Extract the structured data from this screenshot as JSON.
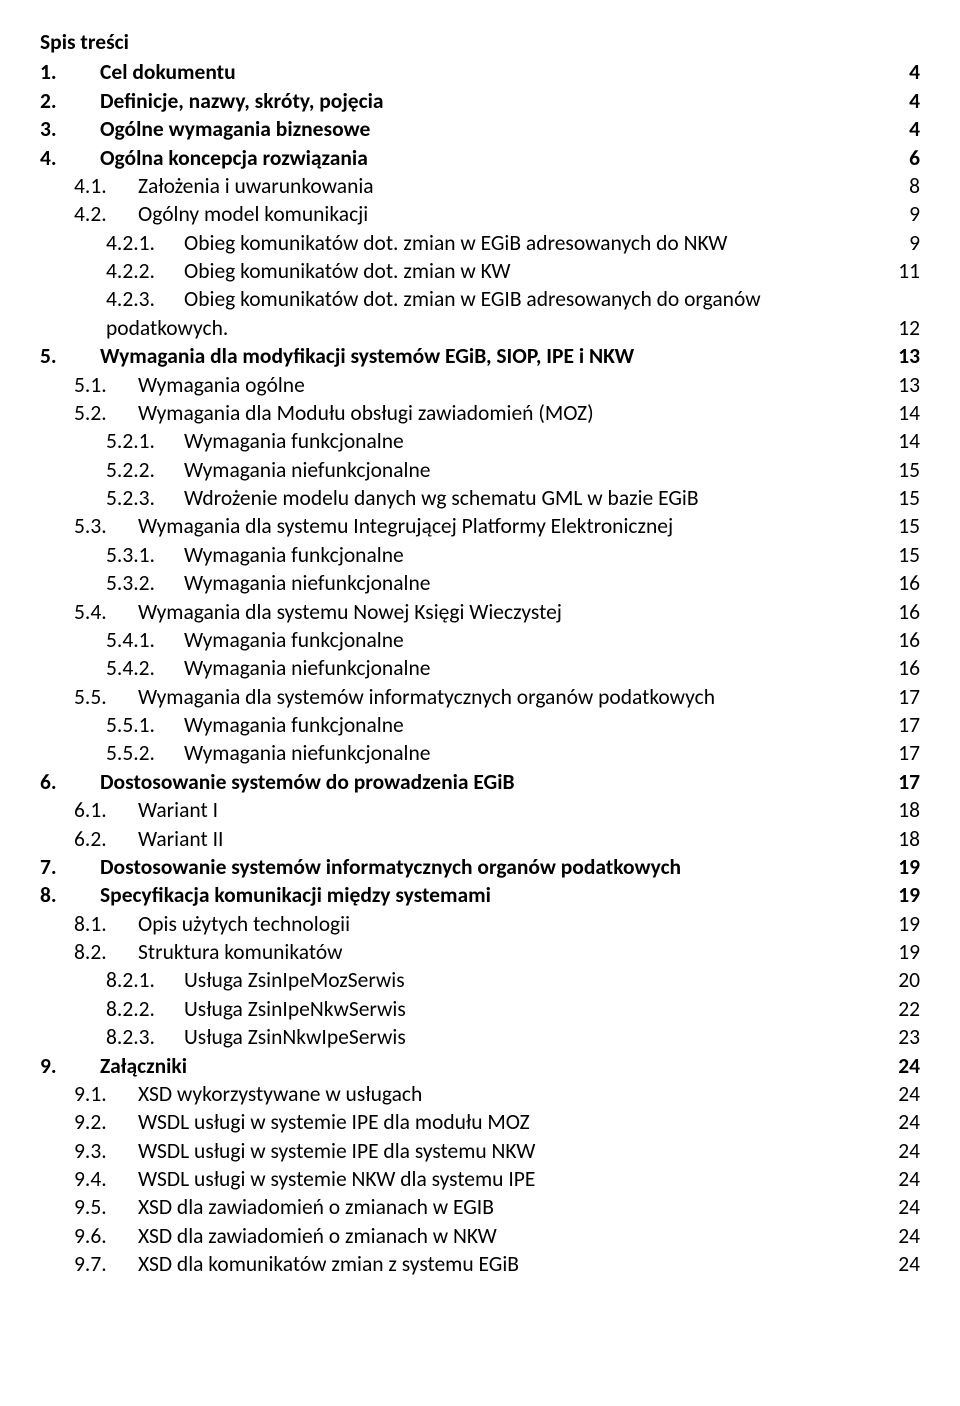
{
  "title": "Spis treści",
  "entries": [
    {
      "num": "1.",
      "numClass": "num-w1",
      "label": "Cel dokumentu",
      "page": "4",
      "bold": true,
      "indent": "lvl1"
    },
    {
      "num": "2.",
      "numClass": "num-w1",
      "label": "Definicje, nazwy, skróty, pojęcia",
      "page": "4",
      "bold": true,
      "indent": "lvl1"
    },
    {
      "num": "3.",
      "numClass": "num-w1",
      "label": "Ogólne wymagania biznesowe",
      "page": "4",
      "bold": true,
      "indent": "lvl1"
    },
    {
      "num": "4.",
      "numClass": "num-w1",
      "label": "Ogólna koncepcja rozwiązania",
      "page": "6",
      "bold": true,
      "indent": "lvl1"
    },
    {
      "num": "4.1.",
      "numClass": "num-w2",
      "label": "Założenia i uwarunkowania",
      "page": "8",
      "bold": false,
      "indent": "lvl2"
    },
    {
      "num": "4.2.",
      "numClass": "num-w2",
      "label": "Ogólny model komunikacji",
      "page": "9",
      "bold": false,
      "indent": "lvl2"
    },
    {
      "num": "4.2.1.",
      "numClass": "num-w3",
      "label": "Obieg komunikatów dot. zmian w EGiB adresowanych do NKW",
      "page": "9",
      "bold": false,
      "indent": "lvl3"
    },
    {
      "num": "4.2.2.",
      "numClass": "num-w3",
      "label": "Obieg komunikatów dot. zmian w KW",
      "page": "11",
      "bold": false,
      "indent": "lvl3"
    },
    {
      "type": "wrap",
      "num": "4.2.3.",
      "numClass": "num-w3",
      "line1": "Obieg   komunikatów   dot.   zmian   w   EGIB   adresowanych   do   organów",
      "line2": "podatkowych.",
      "page": "12",
      "indent": "lvl3"
    },
    {
      "num": "5.",
      "numClass": "num-w1",
      "label": "Wymagania dla modyfikacji systemów EGiB, SIOP, IPE i NKW",
      "page": "13",
      "bold": true,
      "indent": "lvl1"
    },
    {
      "num": "5.1.",
      "numClass": "num-w2",
      "label": "Wymagania ogólne",
      "page": "13",
      "bold": false,
      "indent": "lvl2"
    },
    {
      "num": "5.2.",
      "numClass": "num-w2",
      "label": "Wymagania dla Modułu obsługi zawiadomień (MOZ)",
      "page": "14",
      "bold": false,
      "indent": "lvl2"
    },
    {
      "num": "5.2.1.",
      "numClass": "num-w3",
      "label": "Wymagania funkcjonalne",
      "page": "14",
      "bold": false,
      "indent": "lvl3"
    },
    {
      "num": "5.2.2.",
      "numClass": "num-w3",
      "label": "Wymagania niefunkcjonalne",
      "page": "15",
      "bold": false,
      "indent": "lvl3"
    },
    {
      "num": "5.2.3.",
      "numClass": "num-w3",
      "label": "Wdrożenie modelu danych wg schematu GML w bazie EGiB",
      "page": "15",
      "bold": false,
      "indent": "lvl3"
    },
    {
      "num": "5.3.",
      "numClass": "num-w2",
      "label": "Wymagania dla systemu Integrującej Platformy Elektronicznej",
      "page": "15",
      "bold": false,
      "indent": "lvl2"
    },
    {
      "num": "5.3.1.",
      "numClass": "num-w3",
      "label": "Wymagania funkcjonalne",
      "page": "15",
      "bold": false,
      "indent": "lvl3"
    },
    {
      "num": "5.3.2.",
      "numClass": "num-w3",
      "label": "Wymagania niefunkcjonalne",
      "page": "16",
      "bold": false,
      "indent": "lvl3"
    },
    {
      "num": "5.4.",
      "numClass": "num-w2",
      "label": "Wymagania dla systemu Nowej Księgi Wieczystej",
      "page": "16",
      "bold": false,
      "indent": "lvl2"
    },
    {
      "num": "5.4.1.",
      "numClass": "num-w3",
      "label": "Wymagania funkcjonalne",
      "page": "16",
      "bold": false,
      "indent": "lvl3"
    },
    {
      "num": "5.4.2.",
      "numClass": "num-w3",
      "label": "Wymagania niefunkcjonalne",
      "page": "16",
      "bold": false,
      "indent": "lvl3"
    },
    {
      "num": "5.5.",
      "numClass": "num-w2",
      "label": "Wymagania dla systemów informatycznych organów podatkowych",
      "page": "17",
      "bold": false,
      "indent": "lvl2"
    },
    {
      "num": "5.5.1.",
      "numClass": "num-w3",
      "label": "Wymagania funkcjonalne",
      "page": "17",
      "bold": false,
      "indent": "lvl3"
    },
    {
      "num": "5.5.2.",
      "numClass": "num-w3",
      "label": "Wymagania niefunkcjonalne",
      "page": "17",
      "bold": false,
      "indent": "lvl3"
    },
    {
      "num": "6.",
      "numClass": "num-w1",
      "label": "Dostosowanie systemów do prowadzenia EGiB",
      "page": "17",
      "bold": true,
      "indent": "lvl1"
    },
    {
      "num": "6.1.",
      "numClass": "num-w2",
      "label": "Wariant I",
      "page": "18",
      "bold": false,
      "indent": "lvl2"
    },
    {
      "num": "6.2.",
      "numClass": "num-w2",
      "label": "Wariant II",
      "page": "18",
      "bold": false,
      "indent": "lvl2"
    },
    {
      "num": "7.",
      "numClass": "num-w1",
      "label": "Dostosowanie systemów informatycznych organów podatkowych",
      "page": "19",
      "bold": true,
      "indent": "lvl1"
    },
    {
      "num": "8.",
      "numClass": "num-w1",
      "label": "Specyfikacja komunikacji między systemami",
      "page": "19",
      "bold": true,
      "indent": "lvl1"
    },
    {
      "num": "8.1.",
      "numClass": "num-w2",
      "label": "Opis użytych technologii",
      "page": "19",
      "bold": false,
      "indent": "lvl2"
    },
    {
      "num": "8.2.",
      "numClass": "num-w2",
      "label": "Struktura komunikatów",
      "page": "19",
      "bold": false,
      "indent": "lvl2"
    },
    {
      "num": "8.2.1.",
      "numClass": "num-w3",
      "label": "Usługa ZsinIpeMozSerwis",
      "page": "20",
      "bold": false,
      "indent": "lvl3"
    },
    {
      "num": "8.2.2.",
      "numClass": "num-w3",
      "label": "Usługa ZsinIpeNkwSerwis",
      "page": "22",
      "bold": false,
      "indent": "lvl3"
    },
    {
      "num": "8.2.3.",
      "numClass": "num-w3",
      "label": "Usługa ZsinNkwIpeSerwis",
      "page": "23",
      "bold": false,
      "indent": "lvl3"
    },
    {
      "num": "9.",
      "numClass": "num-w1",
      "label": "Załączniki",
      "page": "24",
      "bold": true,
      "indent": "lvl1"
    },
    {
      "num": "9.1.",
      "numClass": "num-w2",
      "label": "XSD wykorzystywane w usługach",
      "page": "24",
      "bold": false,
      "indent": "lvl2"
    },
    {
      "num": "9.2.",
      "numClass": "num-w2",
      "label": "WSDL usługi w systemie IPE dla modułu MOZ",
      "page": "24",
      "bold": false,
      "indent": "lvl2"
    },
    {
      "num": "9.3.",
      "numClass": "num-w2",
      "label": "WSDL usługi w systemie IPE dla systemu NKW",
      "page": "24",
      "bold": false,
      "indent": "lvl2"
    },
    {
      "num": "9.4.",
      "numClass": "num-w2",
      "label": "WSDL usługi w systemie NKW dla systemu IPE",
      "page": "24",
      "bold": false,
      "indent": "lvl2"
    },
    {
      "num": "9.5.",
      "numClass": "num-w2",
      "label": "XSD dla zawiadomień o zmianach w EGIB",
      "page": "24",
      "bold": false,
      "indent": "lvl2"
    },
    {
      "num": "9.6.",
      "numClass": "num-w2",
      "label": "XSD dla zawiadomień o zmianach w NKW",
      "page": "24",
      "bold": false,
      "indent": "lvl2"
    },
    {
      "num": "9.7.",
      "numClass": "num-w2",
      "label": "XSD dla komunikatów zmian z systemu EGiB",
      "page": "24",
      "bold": false,
      "indent": "lvl2"
    }
  ]
}
